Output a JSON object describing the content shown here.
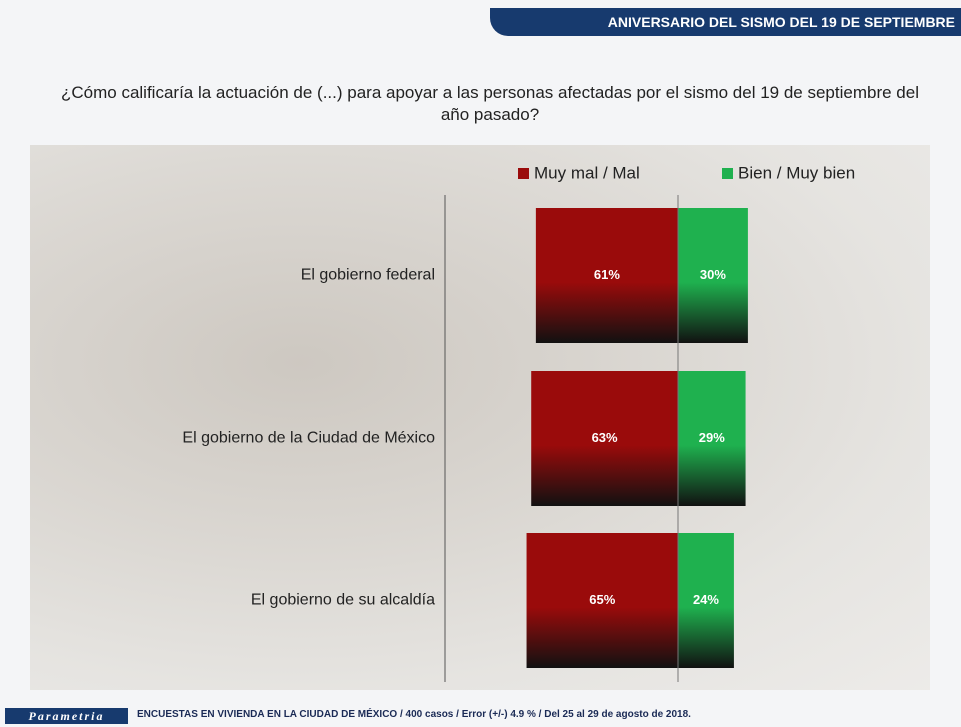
{
  "header": "ANIVERSARIO DEL SISMO DEL 19 DE SEPTIEMBRE",
  "chart_data": {
    "type": "bar",
    "title": "¿Cómo calificaría la actuación de (...) para apoyar a las personas afectadas por el sismo del 19 de septiembre del año pasado?",
    "categories": [
      "El gobierno federal",
      "El gobierno de la Ciudad de México",
      "El gobierno de su alcaldía"
    ],
    "series": [
      {
        "name": "Muy mal / Mal",
        "color": "#9a0b0b",
        "values": [
          61,
          63,
          65
        ],
        "value_labels": [
          "61%",
          "63%",
          "65%"
        ]
      },
      {
        "name": "Bien / Muy bien",
        "color": "#1fb14f",
        "values": [
          30,
          29,
          24
        ],
        "value_labels": [
          "30%",
          "29%",
          "24%"
        ]
      }
    ]
  },
  "footer": {
    "logo": "Parametria",
    "note": "ENCUESTAS EN VIVIENDA EN LA CIUDAD DE MÉXICO / 400 casos / Error (+/-) 4.9 % / Del 25 al 29 de agosto de 2018."
  }
}
